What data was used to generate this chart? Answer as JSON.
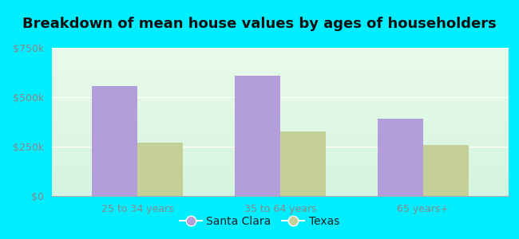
{
  "title": "Breakdown of mean house values by ages of householders",
  "categories": [
    "25 to 34 years",
    "35 to 64 years",
    "65 years+"
  ],
  "santa_clara_values": [
    555000,
    610000,
    390000
  ],
  "texas_values": [
    270000,
    325000,
    260000
  ],
  "santa_clara_color": "#b39ddb",
  "texas_color": "#c5cf98",
  "outer_bg": "#00eeff",
  "plot_bg_top": "#eafaea",
  "plot_bg_bottom": "#d4f5e0",
  "ylim": [
    0,
    750000
  ],
  "yticks": [
    0,
    250000,
    500000,
    750000
  ],
  "ytick_labels": [
    "$0",
    "$250k",
    "$500k",
    "$750k"
  ],
  "legend_labels": [
    "Santa Clara",
    "Texas"
  ],
  "bar_width": 0.32,
  "title_fontsize": 13,
  "tick_fontsize": 9,
  "legend_fontsize": 10,
  "grid_color": "#ffffff",
  "tick_color": "#888888"
}
